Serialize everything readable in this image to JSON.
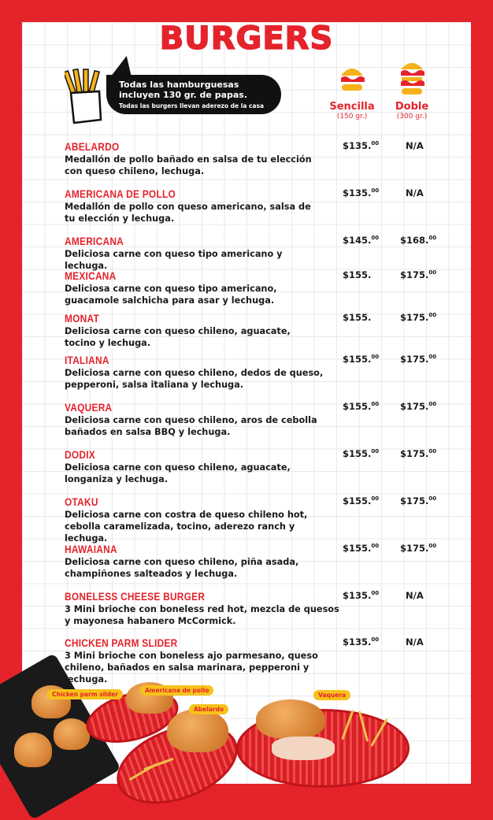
{
  "title": "BURGERS",
  "notice": {
    "line1": "Todas las hamburguesas incluyen 130 gr. de papas.",
    "line2": "Todas las burgers llevan aderezo de la casa"
  },
  "columns": [
    {
      "name": "Sencilla",
      "weight": "(150 gr.)"
    },
    {
      "name": "Doble",
      "weight": "(300 gr.)"
    }
  ],
  "items": [
    {
      "name": "ABELARDO",
      "desc": "Medallón de pollo bañado en salsa de tu elección con queso chileno, lechuga.",
      "sencilla": "$135.",
      "sencilla_cents": "00",
      "doble": "N/A",
      "doble_cents": ""
    },
    {
      "name": "AMERICANA DE POLLO",
      "desc": "Medallón de pollo con queso americano, salsa de tu elección y lechuga.",
      "sencilla": "$135.",
      "sencilla_cents": "00",
      "doble": "N/A",
      "doble_cents": ""
    },
    {
      "name": "AMERICANA",
      "desc": "Deliciosa carne con queso tipo americano y lechuga.",
      "sencilla": "$145.",
      "sencilla_cents": "00",
      "doble": "$168.",
      "doble_cents": "00"
    },
    {
      "name": "MEXICANA",
      "desc": "Deliciosa carne con queso tipo americano, guacamole salchicha para asar y lechuga.",
      "sencilla": "$155.",
      "sencilla_cents": "",
      "doble": "$175.",
      "doble_cents": "00"
    },
    {
      "name": "MONAT",
      "desc": "Deliciosa carne con queso chileno, aguacate, tocino y lechuga.",
      "sencilla": "$155.",
      "sencilla_cents": "",
      "doble": "$175.",
      "doble_cents": "00"
    },
    {
      "name": "ITALIANA",
      "desc": "Deliciosa carne con queso chileno, dedos de queso, pepperoni, salsa italiana y lechuga.",
      "sencilla": "$155.",
      "sencilla_cents": "00",
      "doble": "$175.",
      "doble_cents": "00"
    },
    {
      "name": "VAQUERA",
      "desc": "Deliciosa carne con queso chileno, aros de cebolla bañados en salsa BBQ y lechuga.",
      "sencilla": "$155.",
      "sencilla_cents": "00",
      "doble": "$175.",
      "doble_cents": "00"
    },
    {
      "name": "DODIX",
      "desc": "Deliciosa carne con queso chileno, aguacate, longaniza y lechuga.",
      "sencilla": "$155.",
      "sencilla_cents": "00",
      "doble": "$175.",
      "doble_cents": "00"
    },
    {
      "name": "OTAKU",
      "desc": "Deliciosa carne con costra de queso chileno hot, cebolla caramelizada, tocino, aderezo ranch y lechuga.",
      "sencilla": "$155.",
      "sencilla_cents": "00",
      "doble": "$175.",
      "doble_cents": "00"
    },
    {
      "name": "HAWAIANA",
      "desc": "Deliciosa carne con queso chileno, piña asada, champiñones salteados y lechuga.",
      "sencilla": "$155.",
      "sencilla_cents": "00",
      "doble": "$175.",
      "doble_cents": "00"
    },
    {
      "name": "BONELESS CHEESE BURGER",
      "desc": "3 Mini brioche con boneless red hot, mezcla de quesos y mayonesa habanero McCormick.",
      "sencilla": "$135.",
      "sencilla_cents": "00",
      "doble": "N/A",
      "doble_cents": ""
    },
    {
      "name": "CHICKEN PARM SLIDER",
      "desc": "3 Mini brioche con boneless ajo parmesano, queso chileno, bañados en salsa marinara, pepperoni y lechuga.",
      "sencilla": "$135.",
      "sencilla_cents": "00",
      "doble": "N/A",
      "doble_cents": ""
    }
  ],
  "photo_tags": [
    "Chicken parm slider",
    "Americana de pollo",
    "Abelardo",
    "Vaquera"
  ],
  "colors": {
    "brand_red": "#e5232b",
    "tag_yellow": "#f7c21b"
  }
}
